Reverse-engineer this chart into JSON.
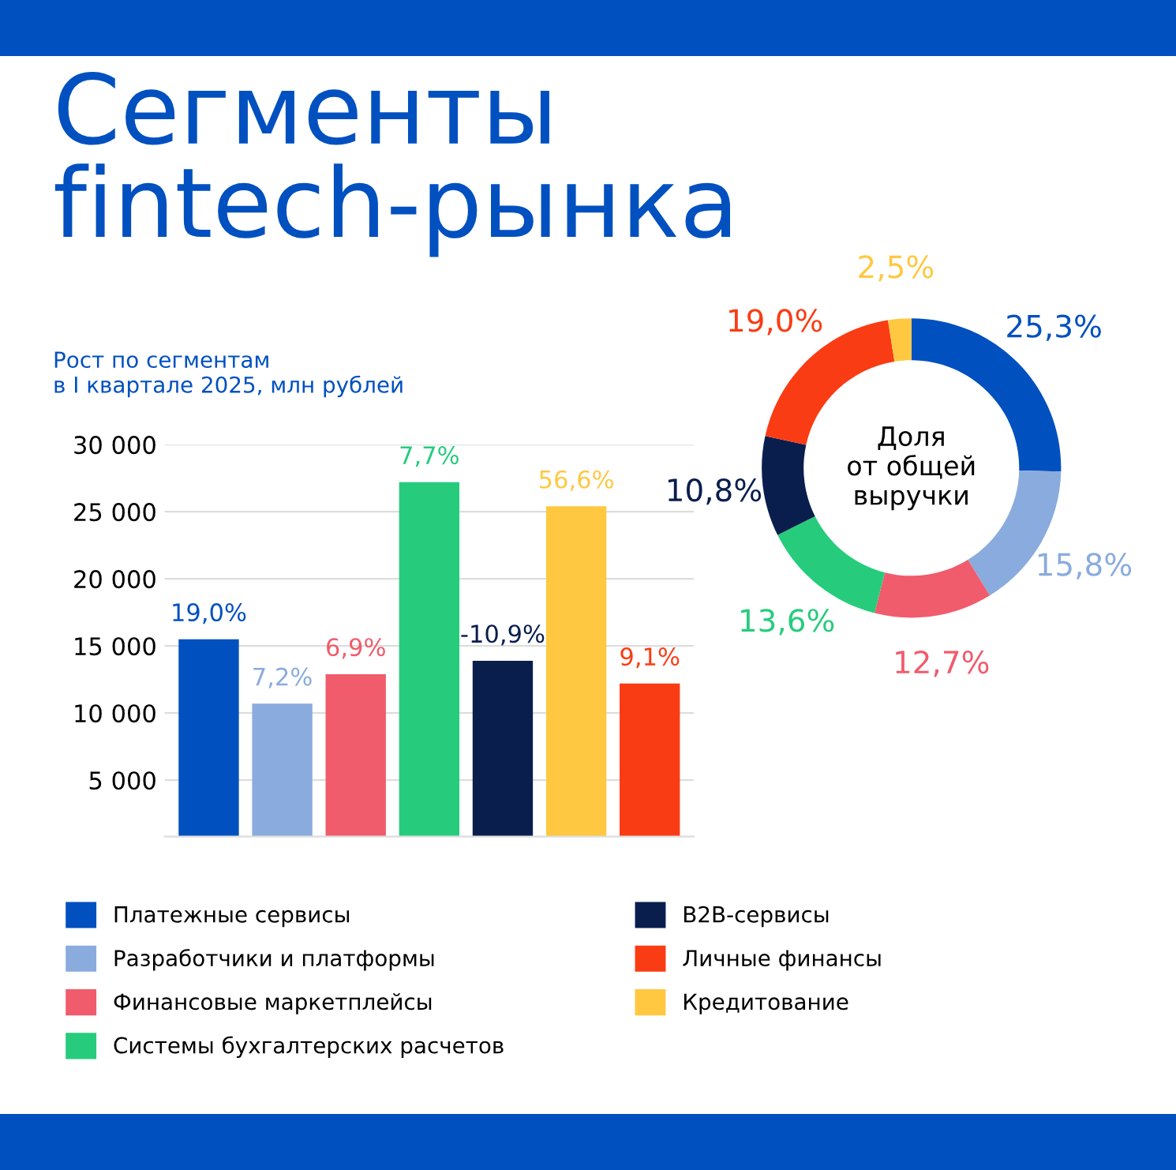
{
  "chart_data": [
    {
      "type": "bar",
      "title": "Сегменты\nfintech-рынка",
      "subtitle": "Рост по сегментам\nв I квартале 2025, млн рублей",
      "categories": [
        null,
        null,
        null,
        null,
        null,
        null,
        null
      ],
      "values": [
        15500,
        10700,
        12900,
        27200,
        13900,
        25400,
        12200
      ],
      "colors": [
        "#0050c0",
        "#8aabdd",
        "#f05c6c",
        "#26cc7c",
        "#0a1e4e",
        "#ffc840",
        "#fa3c14"
      ],
      "annotations": [
        {
          "text": "19,0%",
          "y": 15500
        },
        {
          "text": "7,2%",
          "y": 10700
        },
        {
          "text": "6,9%",
          "y": 12900
        },
        {
          "text": "7,7%",
          "y": 27200
        },
        {
          "text": "-10,9%",
          "y": 13900
        },
        {
          "text": "56,6%",
          "y": 25400
        },
        {
          "text": "9,1%",
          "y": 12200
        }
      ],
      "ylim": [
        800,
        30000
      ],
      "yticks": [
        {
          "value": 5000,
          "label": "5 000"
        },
        {
          "value": 10000,
          "label": "10 000"
        },
        {
          "value": 15000,
          "label": "15 000"
        },
        {
          "value": 20000,
          "label": "20 000"
        },
        {
          "value": 25000,
          "label": "25 000"
        },
        {
          "value": 30000,
          "label": "30 000"
        }
      ],
      "grid": "y",
      "tick_labels": "y"
    },
    {
      "type": "donut",
      "categories": [
        "Платежные сервисы",
        "Разработчики и платформы",
        "Финансовые маркетплейсы",
        "Системы бухгалтерских расчетов",
        "B2B-сервисы",
        "Личные финансы",
        "Кредитование"
      ],
      "values": [
        25.3,
        15.8,
        12.7,
        13.6,
        10.8,
        19.0,
        2.5
      ],
      "colors": [
        "#0050c0",
        "#8aabdd",
        "#f05c6c",
        "#26cc7c",
        "#0a1e4e",
        "#fa3c14",
        "#ffc840"
      ],
      "value_labels": [
        "25,3%",
        "15,8%",
        "12,7%",
        "13,6%",
        "10,8%",
        "19,0%",
        "2,5%"
      ],
      "annotations": [
        "Доля\nот общей\nвыручки"
      ],
      "legend": "bottom"
    }
  ]
}
